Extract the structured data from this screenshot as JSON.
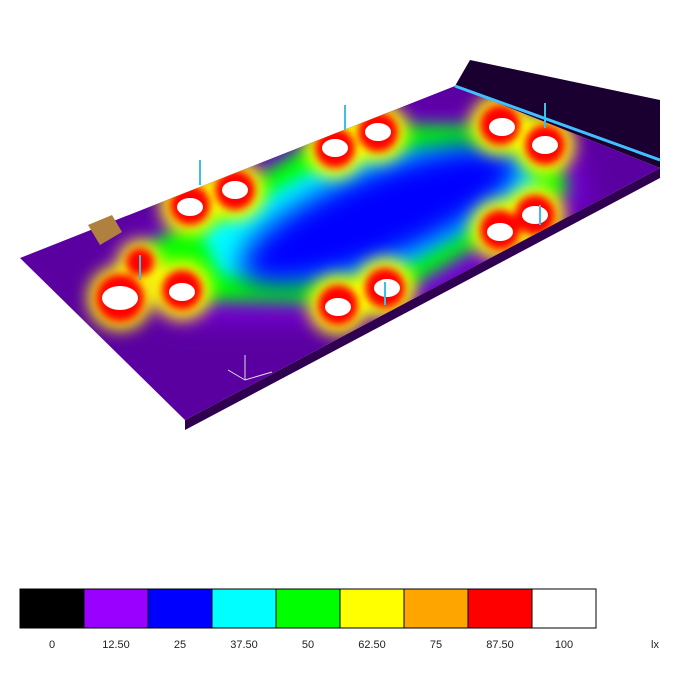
{
  "legend": {
    "unit": "lx",
    "stops": [
      {
        "value": 0,
        "label": "0",
        "color": "#000000"
      },
      {
        "value": 12.5,
        "label": "12.50",
        "color": "#9a00ff"
      },
      {
        "value": 25,
        "label": "25",
        "color": "#0000ff"
      },
      {
        "value": 37.5,
        "label": "37.50",
        "color": "#00ffff"
      },
      {
        "value": 50,
        "label": "50",
        "color": "#00ff00"
      },
      {
        "value": 62.5,
        "label": "62.50",
        "color": "#ffff00"
      },
      {
        "value": 75,
        "label": "75",
        "color": "#ffa500"
      },
      {
        "value": 87.5,
        "label": "87.50",
        "color": "#ff0000"
      },
      {
        "value": 100,
        "label": "100",
        "color": "#ffffff"
      }
    ]
  }
}
